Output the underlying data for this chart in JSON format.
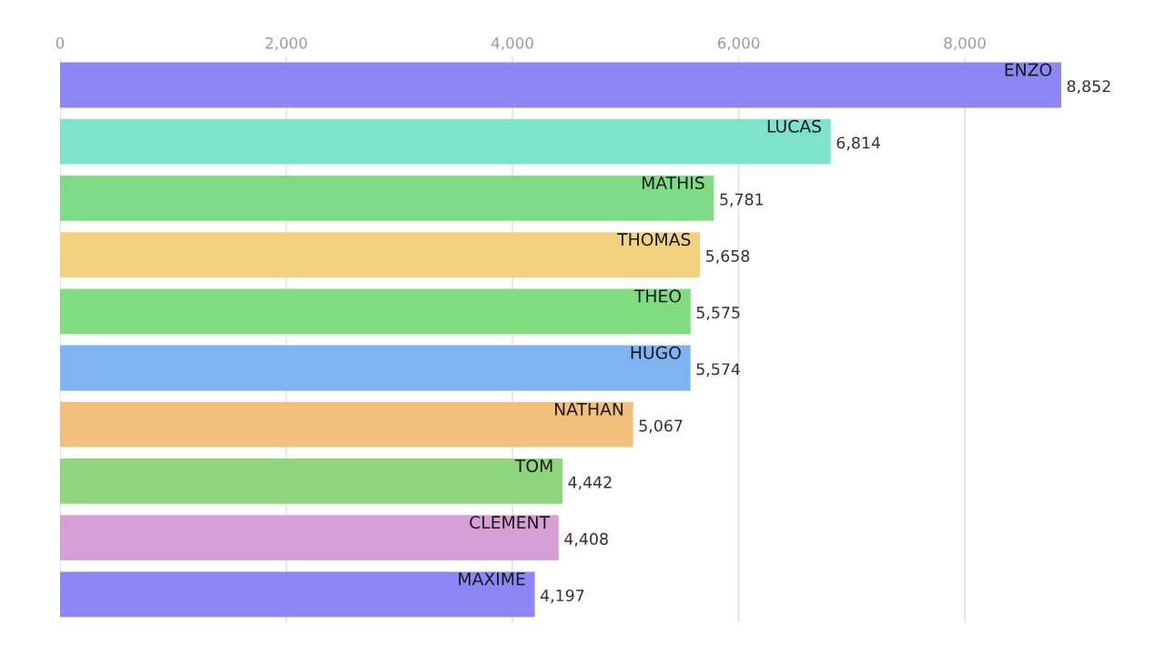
{
  "chart_data": {
    "type": "bar",
    "orientation": "horizontal",
    "categories": [
      "ENZO",
      "LUCAS",
      "MATHIS",
      "THOMAS",
      "THEO",
      "HUGO",
      "NATHAN",
      "TOM",
      "CLEMENT",
      "MAXIME"
    ],
    "values": [
      8852,
      6814,
      5781,
      5658,
      5575,
      5574,
      5067,
      4442,
      4408,
      4197
    ],
    "value_labels": [
      "8,852",
      "6,814",
      "5,781",
      "5,658",
      "5,575",
      "5,574",
      "5,067",
      "4,442",
      "4,408",
      "4,197"
    ],
    "colors": [
      "#8c87f5",
      "#7ee3cb",
      "#7fdc86",
      "#f1d27f",
      "#7fdc7f",
      "#7fb3f2",
      "#f1c17c",
      "#8ed67e",
      "#d6a0d6",
      "#8c87f5"
    ],
    "xlim": [
      0,
      8852
    ],
    "xticks": [
      0,
      {
        "value": 2000,
        "label": "2,000"
      },
      {
        "value": 4000,
        "label": "4,000"
      },
      {
        "value": 6000,
        "label": "6,000"
      },
      {
        "value": 8000,
        "label": "8,000"
      }
    ],
    "grid": "x",
    "tick_labels": "x"
  }
}
